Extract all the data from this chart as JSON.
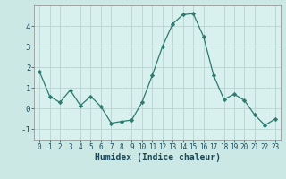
{
  "x": [
    0,
    1,
    2,
    3,
    4,
    5,
    6,
    7,
    8,
    9,
    10,
    11,
    12,
    13,
    14,
    15,
    16,
    17,
    18,
    19,
    20,
    21,
    22,
    23
  ],
  "y": [
    1.8,
    0.6,
    0.3,
    0.9,
    0.15,
    0.6,
    0.1,
    -0.7,
    -0.62,
    -0.55,
    0.3,
    1.6,
    3.0,
    4.1,
    4.55,
    4.6,
    3.5,
    1.6,
    0.45,
    0.7,
    0.4,
    -0.3,
    -0.8,
    -0.5
  ],
  "xlabel": "Humidex (Indice chaleur)",
  "xlim": [
    -0.5,
    23.5
  ],
  "ylim": [
    -1.5,
    5.0
  ],
  "yticks": [
    -1,
    0,
    1,
    2,
    3,
    4
  ],
  "xticks": [
    0,
    1,
    2,
    3,
    4,
    5,
    6,
    7,
    8,
    9,
    10,
    11,
    12,
    13,
    14,
    15,
    16,
    17,
    18,
    19,
    20,
    21,
    22,
    23
  ],
  "line_color": "#2d7a6e",
  "marker": "D",
  "marker_size": 2.2,
  "bg_color": "#cce8e4",
  "plot_bg_color": "#d8f0ee",
  "grid_color": "#b8d4d0",
  "xlabel_color": "#1a4a5a",
  "tick_color": "#1a4a5a",
  "xlabel_fontsize": 7,
  "ytick_fontsize": 6.5,
  "xtick_fontsize": 5.5
}
